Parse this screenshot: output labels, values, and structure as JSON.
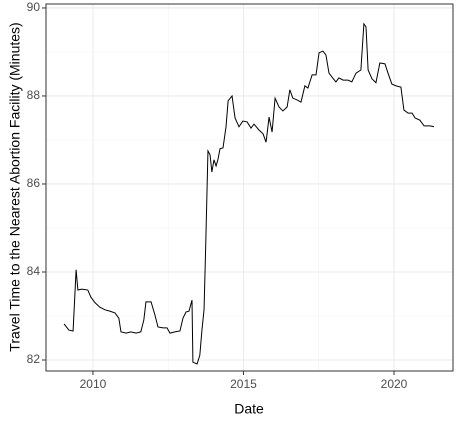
{
  "chart_data": {
    "type": "line",
    "xlabel": "Date",
    "ylabel": "Travel Time to the Nearest Abortion Facility (Minutes)",
    "xlim": [
      2008.44,
      2021.96
    ],
    "xticks": [
      2010,
      2015,
      2020
    ],
    "x_minor_grid": [
      2012.5,
      2017.5
    ],
    "ylim": [
      81.75,
      90.09
    ],
    "yticks": [
      82,
      84,
      86,
      88,
      90
    ],
    "y_minor_grid": [
      83,
      85,
      87,
      89
    ],
    "grid": true,
    "series": [
      {
        "color": "#000000",
        "x": [
          2009.04,
          2009.2,
          2009.34,
          2009.44,
          2009.5,
          2009.63,
          2009.83,
          2009.93,
          2010.07,
          2010.23,
          2010.4,
          2010.56,
          2010.73,
          2010.86,
          2010.93,
          2011.1,
          2011.26,
          2011.43,
          2011.59,
          2011.69,
          2011.76,
          2011.93,
          2012.06,
          2012.16,
          2012.33,
          2012.46,
          2012.56,
          2012.72,
          2012.89,
          2012.99,
          2013.09,
          2013.19,
          2013.29,
          2013.32,
          2013.46,
          2013.55,
          2013.62,
          2013.69,
          2013.75,
          2013.82,
          2013.89,
          2013.95,
          2014.02,
          2014.09,
          2014.15,
          2014.22,
          2014.32,
          2014.42,
          2014.49,
          2014.62,
          2014.72,
          2014.85,
          2014.98,
          2015.12,
          2015.25,
          2015.35,
          2015.51,
          2015.65,
          2015.75,
          2015.85,
          2015.95,
          2016.05,
          2016.18,
          2016.31,
          2016.45,
          2016.54,
          2016.64,
          2016.78,
          2016.91,
          2017.04,
          2017.14,
          2017.28,
          2017.41,
          2017.51,
          2017.64,
          2017.74,
          2017.84,
          2017.94,
          2018.07,
          2018.17,
          2018.31,
          2018.47,
          2018.6,
          2018.74,
          2018.9,
          2019.0,
          2019.07,
          2019.14,
          2019.27,
          2019.4,
          2019.53,
          2019.7,
          2019.8,
          2019.93,
          2020.07,
          2020.23,
          2020.33,
          2020.47,
          2020.6,
          2020.7,
          2020.86,
          2021.0,
          2021.2,
          2021.33
        ],
        "values": [
          82.82,
          82.68,
          82.66,
          84.05,
          83.59,
          83.61,
          83.59,
          83.43,
          83.3,
          83.2,
          83.14,
          83.11,
          83.07,
          82.95,
          82.64,
          82.61,
          82.64,
          82.61,
          82.64,
          82.91,
          83.32,
          83.32,
          83.02,
          82.75,
          82.73,
          82.73,
          82.61,
          82.64,
          82.66,
          82.95,
          83.09,
          83.11,
          83.36,
          81.95,
          81.91,
          82.11,
          82.68,
          83.14,
          84.73,
          86.75,
          86.66,
          86.27,
          86.55,
          86.41,
          86.55,
          86.8,
          86.82,
          87.3,
          87.89,
          88.0,
          87.5,
          87.3,
          87.43,
          87.41,
          87.27,
          87.36,
          87.23,
          87.14,
          86.95,
          87.52,
          87.18,
          87.95,
          87.75,
          87.66,
          87.75,
          88.14,
          87.95,
          87.91,
          87.86,
          88.23,
          88.18,
          88.48,
          88.48,
          88.98,
          89.02,
          88.93,
          88.52,
          88.43,
          88.32,
          88.41,
          88.36,
          88.36,
          88.32,
          88.52,
          88.59,
          89.64,
          89.57,
          88.59,
          88.39,
          88.3,
          88.75,
          88.73,
          88.52,
          88.27,
          88.23,
          88.2,
          87.68,
          87.61,
          87.61,
          87.5,
          87.45,
          87.32,
          87.32,
          87.3
        ]
      }
    ]
  }
}
